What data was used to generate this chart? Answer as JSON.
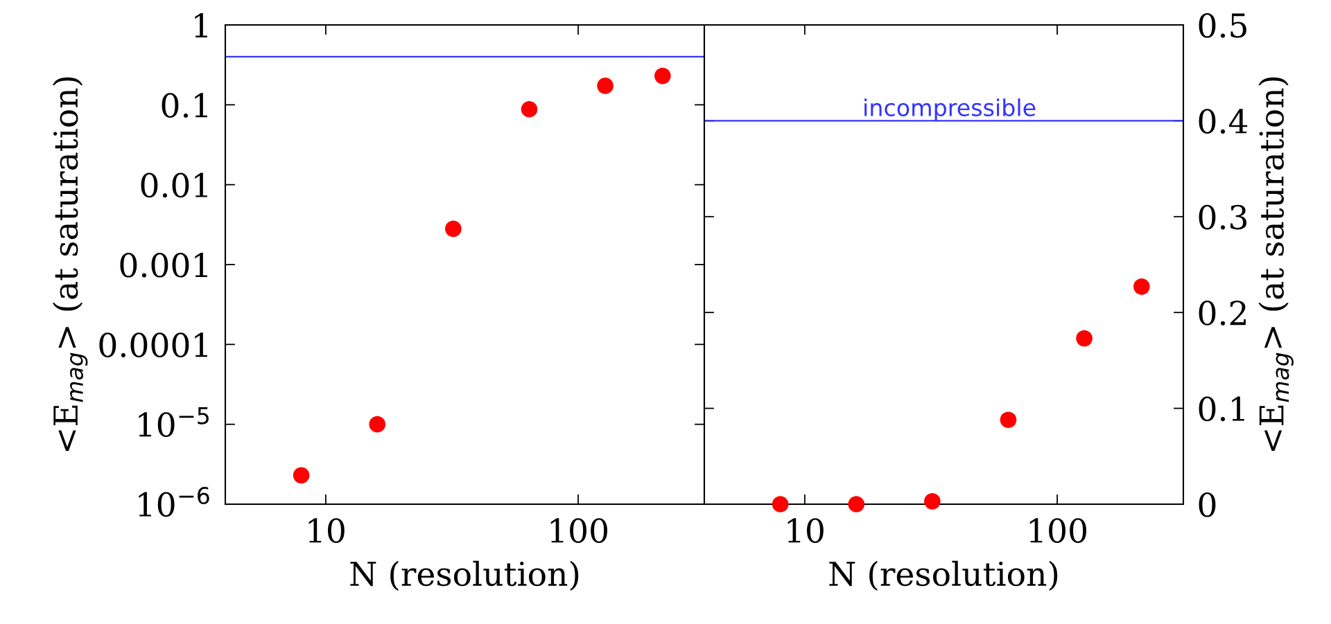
{
  "chart_data": [
    {
      "type": "scatter",
      "xlabel": "N (resolution)",
      "ylabel": "<E$_{mag}$> (at saturation)",
      "log": "xy",
      "x": [
        8,
        16,
        32,
        64,
        128,
        216
      ],
      "series": [
        {
          "color": "#ff0000",
          "values": [
            2.3e-06,
            1e-05,
            0.0028,
            0.088,
            0.173,
            0.23
          ]
        }
      ],
      "marker": "circle",
      "xlim": [
        4,
        316
      ],
      "xticks": [
        10,
        100
      ],
      "ylim": [
        1e-06,
        1
      ],
      "yticks": [
        {
          "value": 1e-06,
          "label": "10$^{−6}$"
        },
        {
          "value": 1e-05,
          "label": "10$^{−5}$"
        },
        0.0001,
        0.001,
        0.01,
        0.1,
        1
      ],
      "ref_lines": [
        {
          "axis": "y",
          "value": 0.4,
          "color": "#3333ff"
        }
      ],
      "grid": false,
      "legend": false
    },
    {
      "type": "scatter",
      "xlabel": "N (resolution)",
      "y2label": "<E$_{mag}$> (at saturation)",
      "log": "x",
      "x": [
        8,
        16,
        32,
        64,
        128,
        216
      ],
      "series": [
        {
          "color": "#ff0000",
          "axis": "y2",
          "values": [
            0,
            0,
            0.003,
            0.088,
            0.173,
            0.227
          ]
        }
      ],
      "marker": "circle",
      "xlim": [
        4,
        316
      ],
      "xticks": [
        10,
        100
      ],
      "y2lim": [
        0,
        0.5
      ],
      "y2ticks": [
        0,
        0.1,
        0.2,
        0.3,
        0.4,
        0.5
      ],
      "ref_lines": [
        {
          "axis": "y2",
          "value": 0.4,
          "color": "#3333ff",
          "label": "incompressible"
        }
      ],
      "grid": false,
      "legend": false
    }
  ]
}
